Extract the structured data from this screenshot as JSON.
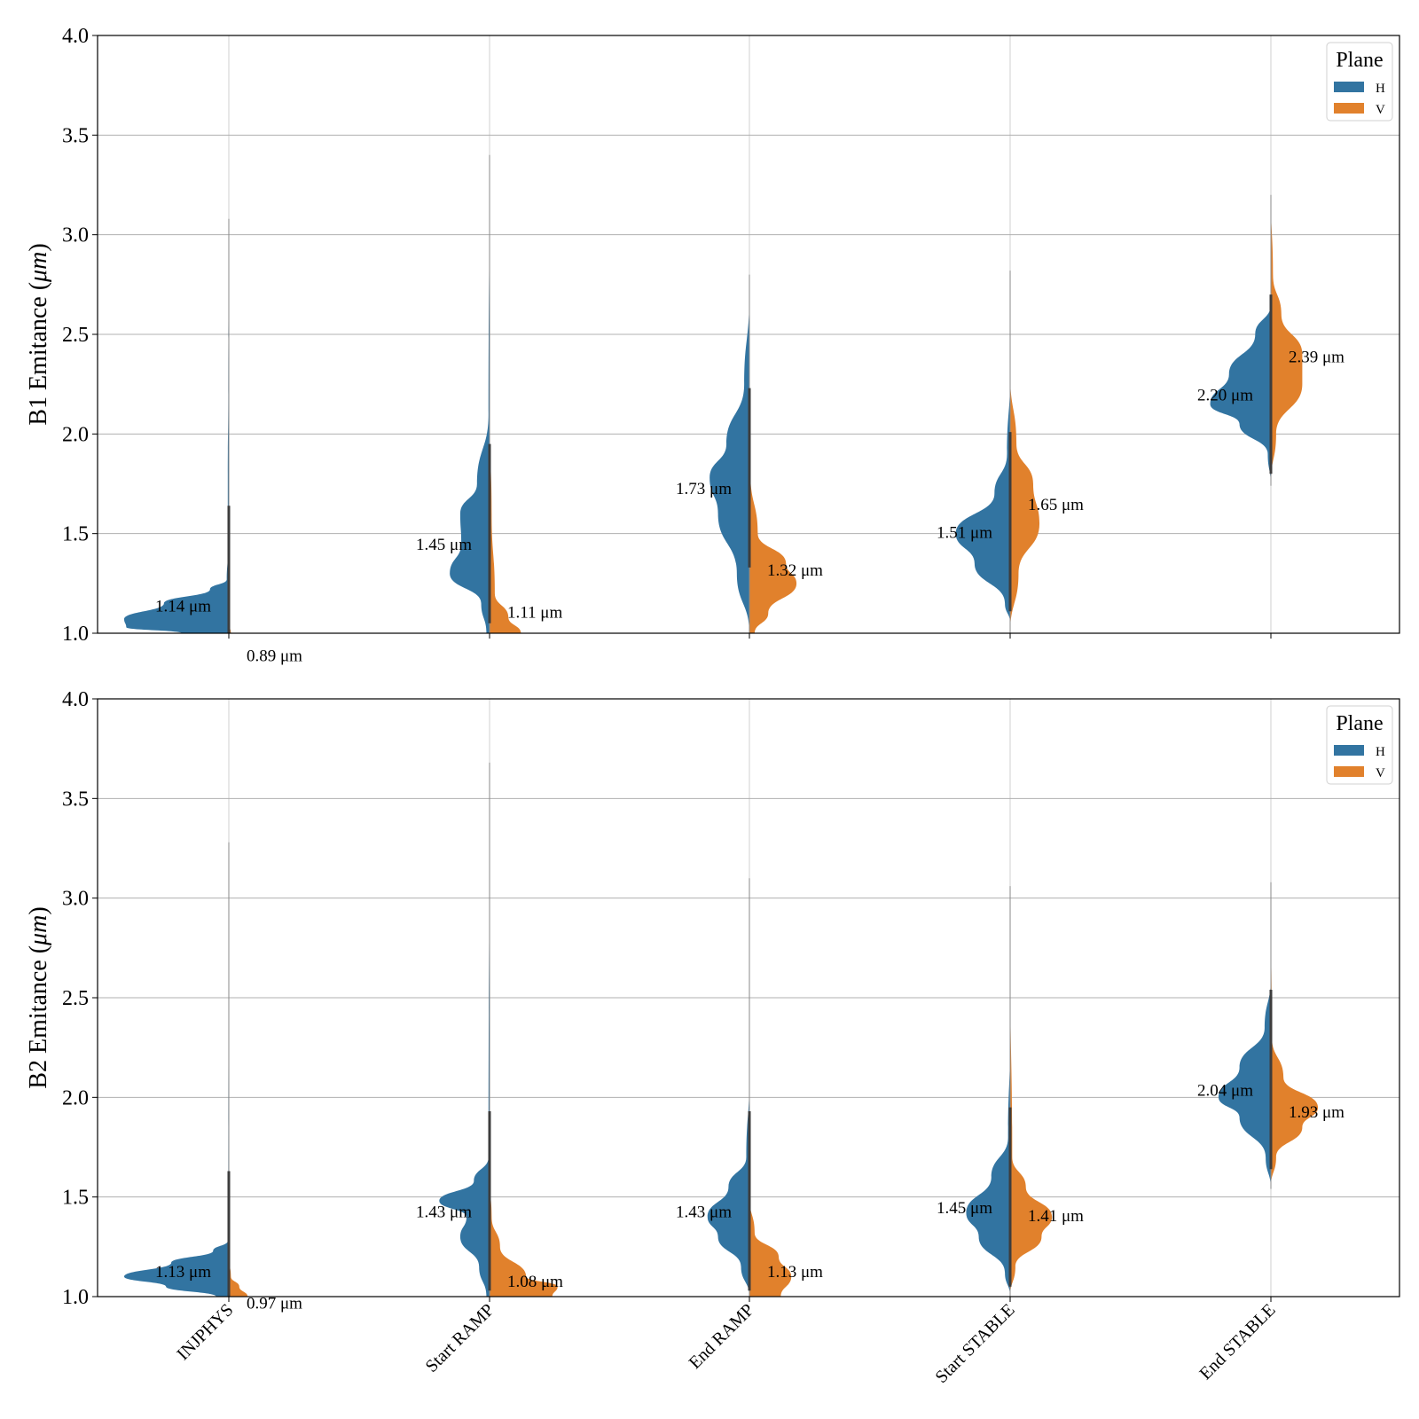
{
  "colors": {
    "H": "#3274a1",
    "V": "#e1812c",
    "grid": "#b0b0b0",
    "axis": "#000000",
    "inner": "#3d3d3d"
  },
  "chart_data": [
    {
      "type": "violin",
      "split": true,
      "ylabel_prefix": "B1 Emitance (",
      "ylabel_unit": "μm",
      "ylabel_suffix": ")",
      "ylim": [
        1.0,
        4.0
      ],
      "yticks": [
        "1.0",
        "1.5",
        "2.0",
        "2.5",
        "3.0",
        "3.5",
        "4.0"
      ],
      "grid": true,
      "legend": {
        "title": "Plane",
        "entries": [
          "H",
          "V"
        ],
        "position": "top-right"
      },
      "categories": [
        "INJPHYS",
        "Start RAMP",
        "End RAMP",
        "Start STABLE",
        "End STABLE"
      ],
      "series": [
        {
          "name": "H",
          "medians": [
            1.14,
            1.45,
            1.73,
            1.51,
            2.2
          ],
          "labels": [
            "1.14 μm",
            "1.45 μm",
            "1.73 μm",
            "1.51 μm",
            "2.20 μm"
          ],
          "range": [
            [
              1.0,
              3.08
            ],
            [
              1.0,
              3.4
            ],
            [
              1.0,
              2.8
            ],
            [
              1.05,
              2.82
            ],
            [
              1.74,
              3.2
            ]
          ],
          "profile": [
            [
              [
                1.0,
                0.45
              ],
              [
                1.03,
                0.98
              ],
              [
                1.07,
                1.0
              ],
              [
                1.15,
                0.62
              ],
              [
                1.22,
                0.18
              ],
              [
                1.27,
                0.02
              ],
              [
                1.4,
                0.01
              ],
              [
                1.8,
                0.01
              ],
              [
                2.2,
                0.005
              ],
              [
                3.08,
                0
              ]
            ],
            [
              [
                1.0,
                0.03
              ],
              [
                1.15,
                0.08
              ],
              [
                1.3,
                0.38
              ],
              [
                1.45,
                0.27
              ],
              [
                1.6,
                0.28
              ],
              [
                1.75,
                0.12
              ],
              [
                2.1,
                0.01
              ],
              [
                3.4,
                0
              ]
            ],
            [
              [
                1.0,
                0.0
              ],
              [
                1.3,
                0.12
              ],
              [
                1.6,
                0.3
              ],
              [
                1.78,
                0.38
              ],
              [
                1.95,
                0.22
              ],
              [
                2.25,
                0.05
              ],
              [
                2.7,
                0.0
              ],
              [
                2.8,
                0
              ]
            ],
            [
              [
                1.05,
                0.0
              ],
              [
                1.15,
                0.05
              ],
              [
                1.35,
                0.34
              ],
              [
                1.5,
                0.52
              ],
              [
                1.7,
                0.15
              ],
              [
                1.9,
                0.03
              ],
              [
                2.3,
                0.0
              ],
              [
                2.82,
                0
              ]
            ],
            [
              [
                1.74,
                0.0
              ],
              [
                1.9,
                0.03
              ],
              [
                2.05,
                0.3
              ],
              [
                2.15,
                0.58
              ],
              [
                2.3,
                0.4
              ],
              [
                2.5,
                0.15
              ],
              [
                2.65,
                0.0
              ],
              [
                3.2,
                0
              ]
            ]
          ]
        },
        {
          "name": "V",
          "medians": [
            0.89,
            1.11,
            1.32,
            1.65,
            2.39
          ],
          "labels": [
            "0.89 μm",
            "1.11 μm",
            "1.32 μm",
            "1.65 μm",
            "2.39 μm"
          ],
          "range": [
            [
              1.0,
              2.4
            ],
            [
              1.0,
              2.1
            ],
            [
              1.0,
              2.45
            ],
            [
              1.0,
              2.5
            ],
            [
              1.75,
              3.2
            ]
          ],
          "profile": [
            [
              [
                1.0,
                0.02
              ],
              [
                1.05,
                0.0
              ],
              [
                2.4,
                0
              ]
            ],
            [
              [
                1.0,
                0.3
              ],
              [
                1.08,
                0.18
              ],
              [
                1.2,
                0.05
              ],
              [
                1.6,
                0.02
              ],
              [
                2.1,
                0
              ]
            ],
            [
              [
                1.0,
                0.05
              ],
              [
                1.1,
                0.18
              ],
              [
                1.25,
                0.45
              ],
              [
                1.35,
                0.35
              ],
              [
                1.5,
                0.08
              ],
              [
                1.8,
                0.01
              ],
              [
                2.45,
                0
              ]
            ],
            [
              [
                1.0,
                0.0
              ],
              [
                1.3,
                0.08
              ],
              [
                1.55,
                0.28
              ],
              [
                1.75,
                0.22
              ],
              [
                1.95,
                0.06
              ],
              [
                2.3,
                0.0
              ],
              [
                2.5,
                0
              ]
            ],
            [
              [
                1.75,
                0.0
              ],
              [
                2.0,
                0.05
              ],
              [
                2.25,
                0.3
              ],
              [
                2.4,
                0.3
              ],
              [
                2.6,
                0.1
              ],
              [
                2.8,
                0.02
              ],
              [
                3.2,
                0
              ]
            ]
          ]
        }
      ]
    },
    {
      "type": "violin",
      "split": true,
      "ylabel_prefix": "B2 Emitance (",
      "ylabel_unit": "μm",
      "ylabel_suffix": ")",
      "ylim": [
        1.0,
        4.0
      ],
      "yticks": [
        "1.0",
        "1.5",
        "2.0",
        "2.5",
        "3.0",
        "3.5",
        "4.0"
      ],
      "grid": true,
      "legend": {
        "title": "Plane",
        "entries": [
          "H",
          "V"
        ],
        "position": "top-right"
      },
      "categories": [
        "INJPHYS",
        "Start RAMP",
        "End RAMP",
        "Start STABLE",
        "End STABLE"
      ],
      "series": [
        {
          "name": "H",
          "medians": [
            1.13,
            1.43,
            1.43,
            1.45,
            2.04
          ],
          "labels": [
            "1.13 μm",
            "1.43 μm",
            "1.43 μm",
            "1.45 μm",
            "2.04 μm"
          ],
          "range": [
            [
              1.0,
              3.28
            ],
            [
              1.0,
              3.68
            ],
            [
              1.0,
              3.1
            ],
            [
              1.0,
              3.06
            ],
            [
              1.54,
              3.08
            ]
          ],
          "profile": [
            [
              [
                1.0,
                0.12
              ],
              [
                1.05,
                0.6
              ],
              [
                1.1,
                1.0
              ],
              [
                1.17,
                0.55
              ],
              [
                1.23,
                0.15
              ],
              [
                1.28,
                0.01
              ],
              [
                1.6,
                0.005
              ],
              [
                3.28,
                0
              ]
            ],
            [
              [
                1.0,
                0.03
              ],
              [
                1.15,
                0.1
              ],
              [
                1.3,
                0.28
              ],
              [
                1.4,
                0.22
              ],
              [
                1.48,
                0.48
              ],
              [
                1.58,
                0.15
              ],
              [
                1.7,
                0.01
              ],
              [
                3.68,
                0
              ]
            ],
            [
              [
                1.0,
                0.0
              ],
              [
                1.15,
                0.08
              ],
              [
                1.3,
                0.3
              ],
              [
                1.4,
                0.4
              ],
              [
                1.55,
                0.2
              ],
              [
                1.7,
                0.03
              ],
              [
                2.1,
                0.0
              ],
              [
                3.1,
                0
              ]
            ],
            [
              [
                1.0,
                0.0
              ],
              [
                1.12,
                0.05
              ],
              [
                1.3,
                0.3
              ],
              [
                1.42,
                0.42
              ],
              [
                1.6,
                0.18
              ],
              [
                1.8,
                0.02
              ],
              [
                2.3,
                0.0
              ],
              [
                3.06,
                0
              ]
            ],
            [
              [
                1.54,
                0.0
              ],
              [
                1.7,
                0.05
              ],
              [
                1.9,
                0.3
              ],
              [
                2.0,
                0.5
              ],
              [
                2.15,
                0.3
              ],
              [
                2.35,
                0.06
              ],
              [
                2.6,
                0.0
              ],
              [
                3.08,
                0
              ]
            ]
          ]
        },
        {
          "name": "V",
          "medians": [
            0.97,
            1.08,
            1.13,
            1.41,
            1.93
          ],
          "labels": [
            "0.97 μm",
            "1.08 μm",
            "1.13 μm",
            "1.41 μm",
            "1.93 μm"
          ],
          "range": [
            [
              1.0,
              2.6
            ],
            [
              1.0,
              3.05
            ],
            [
              1.0,
              2.6
            ],
            [
              1.0,
              2.7
            ],
            [
              1.55,
              3.0
            ]
          ],
          "profile": [
            [
              [
                1.0,
                0.18
              ],
              [
                1.05,
                0.1
              ],
              [
                1.1,
                0.02
              ],
              [
                1.2,
                0.0
              ],
              [
                2.6,
                0
              ]
            ],
            [
              [
                1.0,
                0.6
              ],
              [
                1.05,
                0.65
              ],
              [
                1.1,
                0.35
              ],
              [
                1.25,
                0.1
              ],
              [
                1.4,
                0.02
              ],
              [
                1.6,
                0.0
              ],
              [
                3.05,
                0
              ]
            ],
            [
              [
                1.0,
                0.3
              ],
              [
                1.1,
                0.4
              ],
              [
                1.2,
                0.28
              ],
              [
                1.32,
                0.05
              ],
              [
                1.5,
                0.0
              ],
              [
                2.6,
                0
              ]
            ],
            [
              [
                1.0,
                0.0
              ],
              [
                1.15,
                0.05
              ],
              [
                1.3,
                0.3
              ],
              [
                1.4,
                0.4
              ],
              [
                1.55,
                0.15
              ],
              [
                1.7,
                0.02
              ],
              [
                2.7,
                0
              ]
            ],
            [
              [
                1.55,
                0.0
              ],
              [
                1.7,
                0.05
              ],
              [
                1.85,
                0.3
              ],
              [
                1.95,
                0.45
              ],
              [
                2.1,
                0.12
              ],
              [
                2.3,
                0.01
              ],
              [
                3.0,
                0
              ]
            ]
          ]
        }
      ]
    }
  ]
}
